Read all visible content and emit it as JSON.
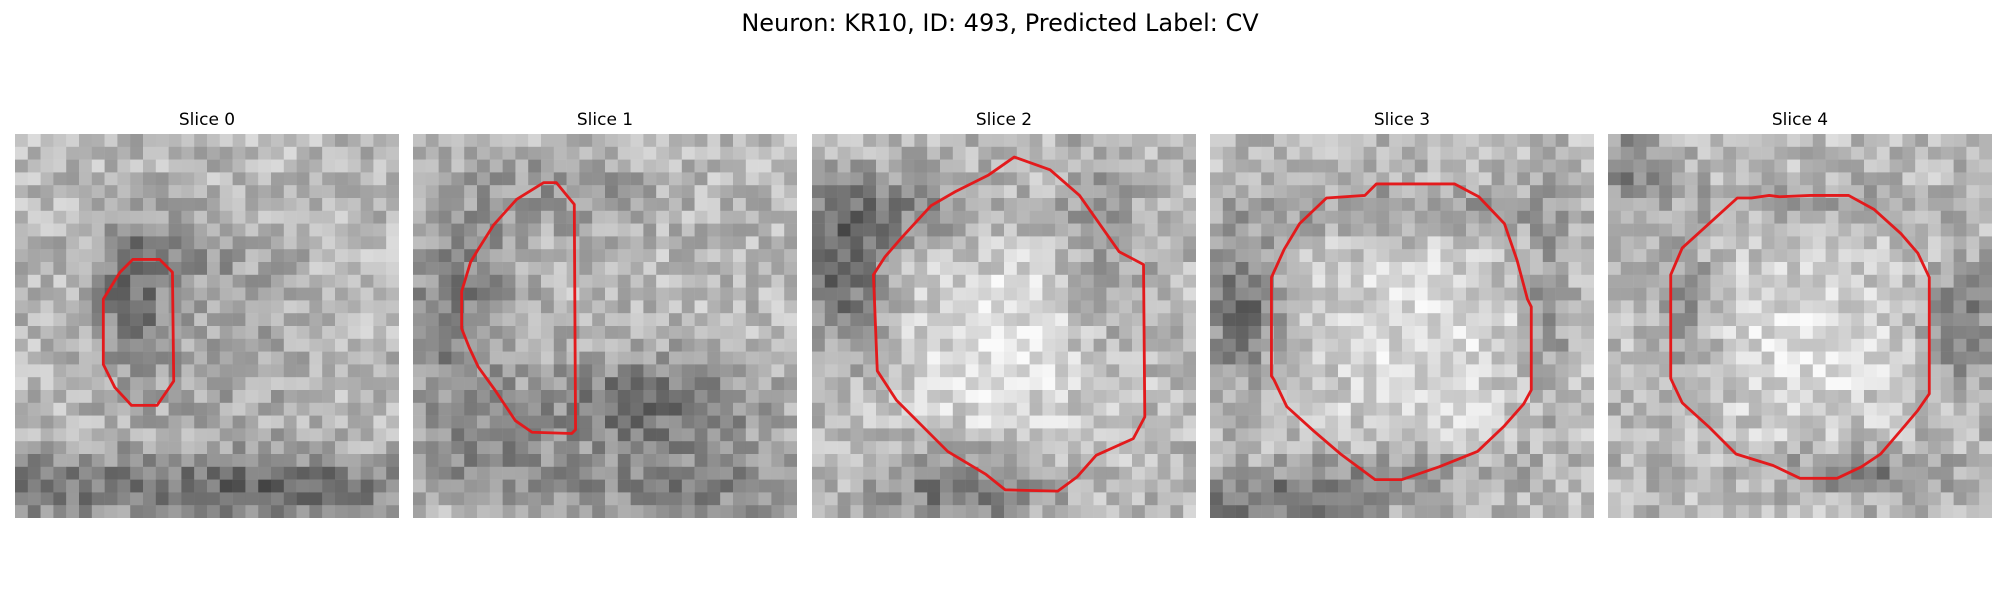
{
  "figure": {
    "title": "Neuron: KR10, ID: 493, Predicted Label: CV"
  },
  "slices": [
    {
      "title": "Slice 0",
      "contour_color": "#e31a1c",
      "bg": "light",
      "blobs": [
        [
          0.3,
          0.42,
          0.1,
          0.2,
          -70
        ],
        [
          0.1,
          0.92,
          0.6,
          0.1,
          -60
        ],
        [
          0.75,
          0.92,
          0.3,
          0.08,
          -65
        ],
        [
          0.55,
          0.55,
          0.2,
          0.25,
          -25
        ],
        [
          0.45,
          0.3,
          0.18,
          0.08,
          -30
        ]
      ]
    },
    {
      "title": "Slice 1",
      "contour_color": "#e31a1c",
      "bg": "light",
      "blobs": [
        [
          0.12,
          0.45,
          0.14,
          0.3,
          -60
        ],
        [
          0.62,
          0.7,
          0.3,
          0.12,
          -75
        ],
        [
          0.4,
          0.15,
          0.2,
          0.1,
          -35
        ],
        [
          0.7,
          0.92,
          0.35,
          0.1,
          -55
        ],
        [
          0.2,
          0.85,
          0.2,
          0.1,
          -40
        ]
      ]
    },
    {
      "title": "Slice 2",
      "contour_color": "#e31a1c",
      "bg": "light",
      "blobs": [
        [
          0.08,
          0.35,
          0.12,
          0.2,
          -85
        ],
        [
          0.4,
          0.92,
          0.22,
          0.1,
          -80
        ],
        [
          0.25,
          0.2,
          0.25,
          0.1,
          -45
        ],
        [
          0.75,
          0.3,
          0.12,
          0.25,
          -40
        ],
        [
          0.5,
          0.55,
          0.28,
          0.3,
          45
        ]
      ]
    },
    {
      "title": "Slice 3",
      "contour_color": "#e31a1c",
      "bg": "light",
      "blobs": [
        [
          0.08,
          0.45,
          0.1,
          0.18,
          -80
        ],
        [
          0.15,
          0.96,
          0.3,
          0.08,
          -70
        ],
        [
          0.5,
          0.2,
          0.35,
          0.06,
          -40
        ],
        [
          0.88,
          0.45,
          0.06,
          0.3,
          -45
        ],
        [
          0.5,
          0.88,
          0.3,
          0.06,
          -40
        ],
        [
          0.55,
          0.55,
          0.3,
          0.28,
          40
        ]
      ]
    },
    {
      "title": "Slice 4",
      "contour_color": "#e31a1c",
      "bg": "light",
      "blobs": [
        [
          0.06,
          0.08,
          0.08,
          0.1,
          -60
        ],
        [
          0.92,
          0.5,
          0.1,
          0.15,
          -70
        ],
        [
          0.65,
          0.88,
          0.22,
          0.06,
          -70
        ],
        [
          0.2,
          0.45,
          0.08,
          0.2,
          -45
        ],
        [
          0.5,
          0.18,
          0.3,
          0.05,
          -35
        ],
        [
          0.52,
          0.55,
          0.28,
          0.28,
          40
        ]
      ]
    }
  ]
}
